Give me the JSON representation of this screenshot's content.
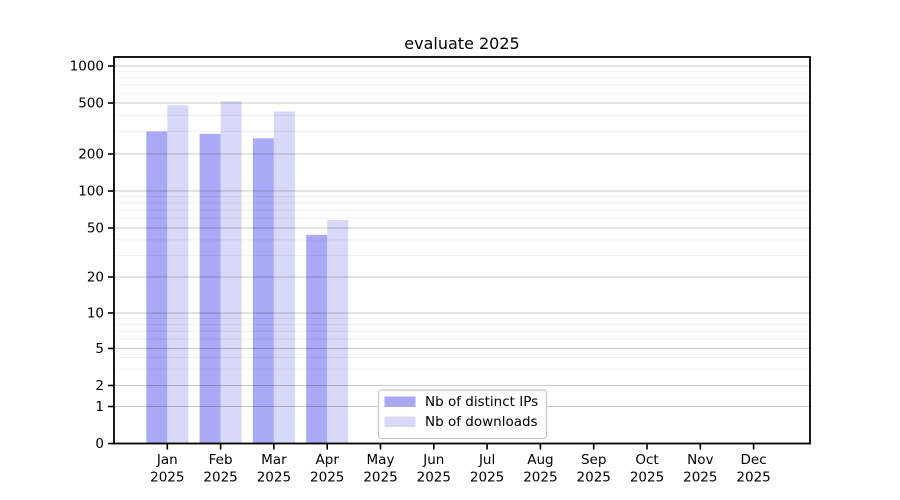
{
  "figure": {
    "background": "#ffffff"
  },
  "chart_data": {
    "type": "bar",
    "title": "evaluate 2025",
    "xlabel": "",
    "ylabel": "",
    "year_label": "2025",
    "categories": [
      "Jan",
      "Feb",
      "Mar",
      "Apr",
      "May",
      "Jun",
      "Jul",
      "Aug",
      "Sep",
      "Oct",
      "Nov",
      "Dec"
    ],
    "series": [
      {
        "name": "Nb of distinct IPs",
        "color": "#a9a9f7",
        "values": [
          300,
          287,
          265,
          44,
          0,
          0,
          0,
          0,
          0,
          0,
          0,
          0
        ]
      },
      {
        "name": "Nb of downloads",
        "color": "#d8d8f8",
        "values": [
          480,
          517,
          430,
          58,
          0,
          0,
          0,
          0,
          0,
          0,
          0,
          0
        ]
      }
    ],
    "yscale": "symlog",
    "yticks": [
      0,
      1,
      2,
      5,
      10,
      20,
      50,
      100,
      200,
      500,
      1000
    ],
    "ylim": [
      0,
      1180
    ],
    "grid": {
      "major": true,
      "minor": true
    },
    "legend": {
      "position": "lower-center",
      "entries": [
        "Nb of distinct IPs",
        "Nb of downloads"
      ]
    },
    "colors": {
      "major_grid": "rgba(0,0,0,0.21)",
      "minor_grid": "rgba(0,0,0,0.06)",
      "spine": "#000000",
      "legend_border": "#c8c8c8",
      "legend_background": "#ffffff"
    }
  }
}
